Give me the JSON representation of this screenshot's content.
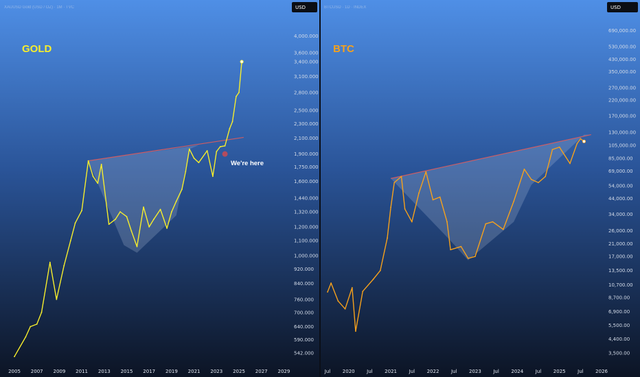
{
  "currency_label": "USD",
  "annotation": "We're here",
  "chart_data": [
    {
      "type": "line",
      "title": "GOLD",
      "header": "XAUUSD Gold (USD / OZ) · 1M · TVC",
      "color": "#f7ee2c",
      "y_scale": "log",
      "ylim": [
        530,
        4500
      ],
      "x_ticks": [
        "2005",
        "2007",
        "2009",
        "2011",
        "2013",
        "2015",
        "2017",
        "2019",
        "2021",
        "2023",
        "2025",
        "2027",
        "2029"
      ],
      "y_ticks": [
        "4,000.000",
        "3,600.000",
        "3,400.000",
        "3,100.000",
        "2,800.000",
        "2,500.000",
        "2,300.000",
        "2,100.000",
        "1,900.000",
        "1,750.000",
        "1,600.000",
        "1,440.000",
        "1,320.000",
        "1,200.000",
        "1,100.000",
        "1,000.000",
        "920.000",
        "840.000",
        "760.000",
        "700.000",
        "640.000",
        "590.000",
        "542.000"
      ],
      "series": [
        {
          "x": [
            "2005-01",
            "2006-01",
            "2006-06",
            "2007-01",
            "2007-06",
            "2008-03",
            "2008-10",
            "2009-06",
            "2010-01",
            "2010-06",
            "2011-01",
            "2011-08",
            "2012-01",
            "2012-06",
            "2012-10",
            "2013-06",
            "2014-01",
            "2014-06",
            "2015-01",
            "2015-06",
            "2015-12",
            "2016-07",
            "2017-01",
            "2017-06",
            "2018-01",
            "2018-08",
            "2019-01",
            "2019-06",
            "2019-12",
            "2020-04",
            "2020-08",
            "2021-01",
            "2021-06",
            "2022-03",
            "2022-09",
            "2023-01",
            "2023-05",
            "2023-10",
            "2024-03",
            "2024-06",
            "2024-10",
            "2025-01",
            "2025-04"
          ],
          "y": [
            530,
            600,
            640,
            650,
            700,
            960,
            760,
            940,
            1100,
            1230,
            1330,
            1820,
            1650,
            1580,
            1780,
            1220,
            1260,
            1320,
            1280,
            1170,
            1060,
            1360,
            1200,
            1260,
            1340,
            1190,
            1320,
            1410,
            1520,
            1700,
            1960,
            1850,
            1800,
            1940,
            1650,
            1930,
            1990,
            2000,
            2230,
            2330,
            2730,
            2800,
            3400
          ]
        }
      ],
      "trendline": {
        "from": [
          "2011-08",
          1820
        ],
        "to": [
          "2025-06",
          2110
        ]
      }
    },
    {
      "type": "line",
      "title": "BTC",
      "header": "BTCUSD · 1D · INDEX",
      "color": "#f6a11c",
      "y_scale": "log",
      "ylim": [
        3000,
        900000
      ],
      "x_ticks": [
        "Jul",
        "2020",
        "Jul",
        "2021",
        "Jul",
        "2022",
        "Jul",
        "2023",
        "Jul",
        "2024",
        "Jul",
        "2025",
        "Jul",
        "2026"
      ],
      "y_ticks": [
        "690,000.00",
        "530,000.00",
        "430,000.00",
        "350,000.00",
        "270,000.00",
        "220,000.00",
        "170,000.00",
        "130,000.00",
        "105,000.00",
        "85,000.00",
        "69,000.00",
        "54,000.00",
        "44,000.00",
        "34,000.00",
        "26,000.00",
        "21,000.00",
        "17,000.00",
        "13,500.00",
        "10,700.00",
        "8,700.00",
        "6,900.00",
        "5,500.00",
        "4,400.00",
        "3,500.00"
      ],
      "series": [
        {
          "x": [
            "2019-07",
            "2019-08",
            "2019-10",
            "2019-12",
            "2020-02",
            "2020-03",
            "2020-05",
            "2020-08",
            "2020-10",
            "2020-12",
            "2021-01",
            "2021-02",
            "2021-04",
            "2021-05",
            "2021-07",
            "2021-09",
            "2021-11",
            "2022-01",
            "2022-03",
            "2022-05",
            "2022-06",
            "2022-09",
            "2022-11",
            "2023-01",
            "2023-04",
            "2023-06",
            "2023-09",
            "2023-12",
            "2024-03",
            "2024-05",
            "2024-07",
            "2024-09",
            "2024-11",
            "2025-01",
            "2025-04",
            "2025-06",
            "2025-07",
            "2025-08"
          ],
          "y": [
            9500,
            11000,
            8200,
            7200,
            10200,
            5000,
            9600,
            11700,
            13500,
            23000,
            38000,
            57000,
            63000,
            37000,
            30000,
            48000,
            68000,
            43000,
            45000,
            30000,
            19000,
            20000,
            16500,
            17000,
            29000,
            30000,
            26500,
            42000,
            71000,
            60000,
            57000,
            63000,
            98000,
            102000,
            78000,
            108000,
            117000,
            112000
          ]
        }
      ],
      "trendline": {
        "from": [
          "2021-01",
          61000
        ],
        "to": [
          "2025-10",
          125000
        ]
      }
    }
  ]
}
